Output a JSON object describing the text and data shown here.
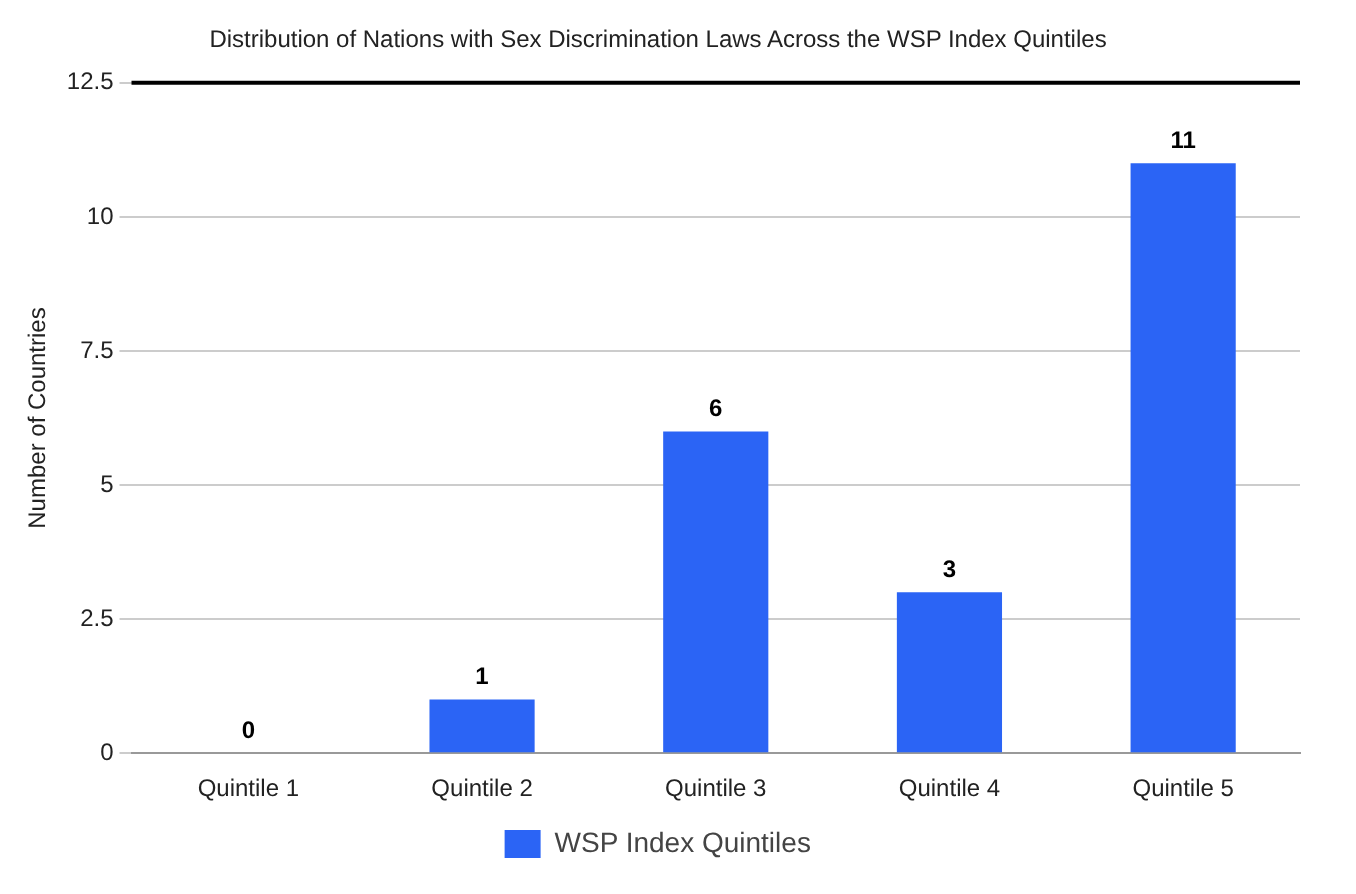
{
  "chart_data": {
    "type": "bar",
    "title": "Distribution of Nations with Sex Discrimination Laws Across the WSP Index Quintiles",
    "ylabel": "Number of Countries",
    "categories": [
      "Quintile 1",
      "Quintile 2",
      "Quintile 3",
      "Quintile 4",
      "Quintile 5"
    ],
    "series": [
      {
        "name": "WSP Index Quintiles",
        "color": "#2b64f5",
        "values": [
          0,
          1,
          6,
          3,
          11
        ]
      }
    ],
    "ylim": [
      0,
      12.5
    ],
    "yticks": [
      0,
      2.5,
      5,
      7.5,
      10,
      12.5
    ],
    "grid": "y",
    "legend": "bottom",
    "data_labels": true
  }
}
